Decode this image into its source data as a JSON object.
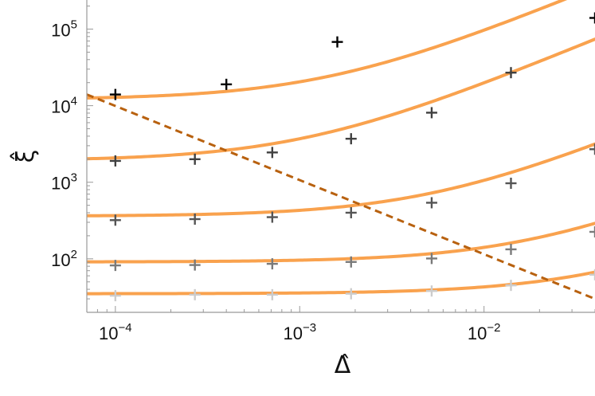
{
  "chart_data": {
    "type": "scatter",
    "title": "",
    "xlabel": "Δ̂",
    "ylabel": "ξ̂",
    "x_scale": "log",
    "y_scale": "log",
    "xlim": [
      7e-05,
      0.04
    ],
    "ylim": [
      20,
      240000
    ],
    "x_ticks": [
      {
        "value": 0.0001,
        "base": "10",
        "exp": "−4"
      },
      {
        "value": 0.001,
        "base": "10",
        "exp": "−3"
      },
      {
        "value": 0.01,
        "base": "10",
        "exp": "−2"
      }
    ],
    "y_ticks": [
      {
        "value": 100,
        "base": "10",
        "exp": "2"
      },
      {
        "value": 1000,
        "base": "10",
        "exp": "3"
      },
      {
        "value": 10000,
        "base": "10",
        "exp": "4"
      },
      {
        "value": 100000,
        "base": "10",
        "exp": "5"
      }
    ],
    "grid": false,
    "legend": "none",
    "colors": {
      "fit": "#F9A24E",
      "crossover": "#B8610F",
      "axis": "#999999",
      "marker_shades": [
        "#000000",
        "#404040",
        "#555555",
        "#7a7a7a",
        "#cccccc"
      ]
    },
    "marker_series": [
      {
        "points": [
          [
            0.0001,
            14000
          ],
          [
            0.0004,
            19000
          ],
          [
            0.0016,
            68000
          ],
          [
            0.04,
            140000
          ]
        ]
      },
      {
        "points": [
          [
            0.0001,
            1900
          ],
          [
            0.00027,
            2000
          ],
          [
            0.00071,
            2450
          ],
          [
            0.0019,
            3700
          ],
          [
            0.0052,
            8100
          ],
          [
            0.014,
            27000
          ]
        ]
      },
      {
        "points": [
          [
            0.0001,
            320
          ],
          [
            0.00027,
            330
          ],
          [
            0.00071,
            350
          ],
          [
            0.0019,
            400
          ],
          [
            0.0052,
            540
          ],
          [
            0.014,
            970
          ],
          [
            0.04,
            2700
          ]
        ]
      },
      {
        "points": [
          [
            0.0001,
            82
          ],
          [
            0.00027,
            83
          ],
          [
            0.00071,
            86
          ],
          [
            0.0019,
            91
          ],
          [
            0.0052,
            101
          ],
          [
            0.014,
            133
          ],
          [
            0.04,
            225
          ]
        ]
      },
      {
        "points": [
          [
            0.0001,
            33
          ],
          [
            0.00027,
            34
          ],
          [
            0.00071,
            34
          ],
          [
            0.0019,
            35
          ],
          [
            0.0052,
            38
          ],
          [
            0.014,
            45
          ],
          [
            0.04,
            62
          ]
        ]
      }
    ],
    "fit_curves": [
      {
        "a": 12000,
        "b": 8500000
      },
      {
        "a": 1900,
        "b": 1800000
      },
      {
        "a": 360,
        "b": 70000
      },
      {
        "a": 91,
        "b": 5000
      },
      {
        "a": 35,
        "b": 800
      }
    ],
    "crossover_line": {
      "points": [
        [
          7e-05,
          14000
        ],
        [
          0.04,
          30
        ]
      ]
    }
  }
}
